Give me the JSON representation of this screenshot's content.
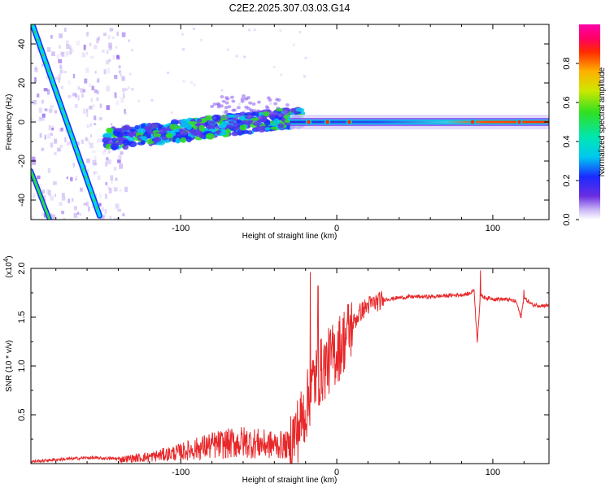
{
  "title": "C2E2.2025.307.03.03.G14",
  "colors": {
    "line": "#e8282a",
    "frame": "#000000"
  },
  "chart_data": [
    {
      "type": "heatmap",
      "name": "spectrogram",
      "title": "C2E2.2025.307.03.03.G14",
      "xlabel": "Height of straight line (km)",
      "ylabel": "Frequency (Hz)",
      "xlim": [
        -196,
        136
      ],
      "ylim": [
        -50,
        50
      ],
      "xticks": [
        -100,
        0,
        100
      ],
      "xtick_labels": [
        "-100",
        "0",
        "100"
      ],
      "yticks": [
        -40,
        -20,
        0,
        20,
        40
      ],
      "ytick_labels": [
        "-40",
        "-20",
        "0",
        "20",
        "40"
      ],
      "colorbar": {
        "label": "Normalized spectral amplitude",
        "range": [
          0,
          1
        ],
        "ticks": [
          0.0,
          0.2,
          0.4,
          0.6,
          0.8
        ],
        "tick_labels": [
          "0.0",
          "0.2",
          "0.4",
          "0.6",
          "0.8"
        ]
      },
      "features": [
        {
          "name": "descending-track",
          "x_start": -195,
          "f_start": 50,
          "x_end": -152,
          "f_end": -48
        },
        {
          "name": "lower-track",
          "x_start": -196,
          "f_start": -25,
          "x_end": -184,
          "f_end": -50
        },
        {
          "name": "carrier-band",
          "x_start": -148,
          "f_start": -9,
          "x_end": -30,
          "f_end": 2,
          "flat_from": -30,
          "flat_freq": 0,
          "flat_to": 136
        }
      ]
    },
    {
      "type": "line",
      "name": "snr-series",
      "xlabel": "Height of straight line (km)",
      "ylabel": "SNR (10 * v/v)",
      "scale_label": "(x10",
      "scale_exp": "4",
      "scale_close": ")",
      "xlim": [
        -196,
        136
      ],
      "ylim": [
        0,
        2.0
      ],
      "xticks": [
        -100,
        0,
        100
      ],
      "xtick_labels": [
        "-100",
        "0",
        "100"
      ],
      "yticks": [
        0.5,
        1.0,
        1.5,
        2.0
      ],
      "ytick_labels": [
        "0.5",
        "1.0",
        "1.5",
        "2.0"
      ],
      "series": [
        {
          "name": "SNR",
          "color": "#e8282a",
          "x": [
            -196,
            -180,
            -160,
            -140,
            -120,
            -100,
            -80,
            -60,
            -45,
            -30,
            -25,
            -20,
            -15,
            -10,
            -5,
            0,
            5,
            10,
            15,
            20,
            30,
            40,
            50,
            60,
            70,
            80,
            85,
            88,
            90,
            92,
            95,
            100,
            110,
            115,
            118,
            120,
            125,
            130,
            136
          ],
          "y": [
            0.02,
            0.04,
            0.06,
            0.05,
            0.08,
            0.14,
            0.22,
            0.26,
            0.23,
            0.22,
            0.35,
            0.55,
            0.85,
            0.95,
            1.05,
            1.15,
            1.28,
            1.42,
            1.55,
            1.62,
            1.68,
            1.7,
            1.71,
            1.71,
            1.72,
            1.73,
            1.74,
            1.78,
            1.25,
            1.72,
            1.7,
            1.69,
            1.68,
            1.66,
            1.5,
            1.7,
            1.63,
            1.62,
            1.62
          ],
          "peak_values": [
            {
              "x": -17,
              "y": 1.96
            },
            {
              "x": -12,
              "y": 1.82
            },
            {
              "x": 92,
              "y": 1.98
            },
            {
              "x": 120,
              "y": 1.78
            }
          ]
        }
      ]
    }
  ]
}
